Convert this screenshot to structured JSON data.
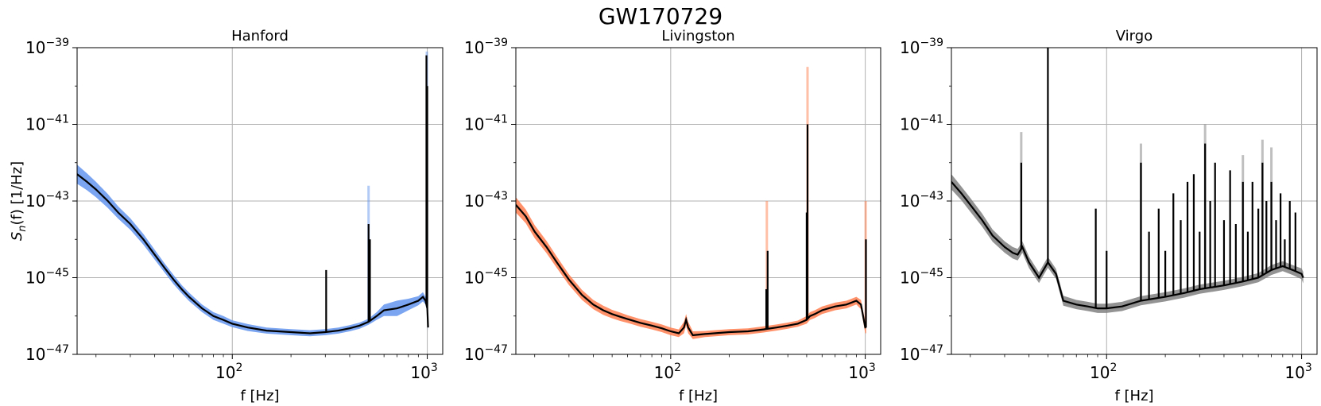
{
  "figure": {
    "title": "GW170729"
  },
  "chart_data": [
    {
      "type": "line",
      "title": "Hanford",
      "xlabel": "f [Hz]",
      "ylabel_main": "S",
      "ylabel_sub": "n",
      "ylabel_rest": "(f) [1/Hz]",
      "xscale": "log",
      "yscale": "log",
      "xlim": [
        16,
        1200
      ],
      "ylim_exp": [
        -47,
        -39
      ],
      "xticks": [
        {
          "value": 100,
          "base": "10",
          "exp": "2"
        },
        {
          "value": 1000,
          "base": "10",
          "exp": "3"
        }
      ],
      "yticks": [
        {
          "exp": -47,
          "base": "10",
          "label": "−47"
        },
        {
          "exp": -45,
          "base": "10",
          "label": "−45"
        },
        {
          "exp": -43,
          "base": "10",
          "label": "−43"
        },
        {
          "exp": -41,
          "base": "10",
          "label": "−41"
        },
        {
          "exp": -39,
          "base": "10",
          "label": "−39"
        }
      ],
      "grid": true,
      "band_color": "#6495ED",
      "median_color": "#000000",
      "series": [
        {
          "role": "median",
          "x": [
            16,
            18,
            20,
            23,
            26,
            30,
            35,
            40,
            45,
            50,
            55,
            60,
            70,
            80,
            90,
            100,
            120,
            150,
            200,
            250,
            300,
            350,
            400,
            450,
            500,
            550,
            600,
            700,
            800,
            900,
            950,
            980,
            1000,
            1010
          ],
          "log10_y": [
            -42.3,
            -42.5,
            -42.7,
            -43.0,
            -43.3,
            -43.6,
            -44.0,
            -44.4,
            -44.75,
            -45.05,
            -45.3,
            -45.5,
            -45.8,
            -46.0,
            -46.1,
            -46.2,
            -46.3,
            -46.38,
            -46.42,
            -46.45,
            -46.42,
            -46.38,
            -46.32,
            -46.25,
            -46.15,
            -46.0,
            -45.85,
            -45.8,
            -45.7,
            -45.6,
            -45.5,
            -45.6,
            -45.8,
            -46.3
          ],
          "lines": [
            {
              "f": 303,
              "top": -44.8
            },
            {
              "f": 500,
              "top": -43.6
            },
            {
              "f": 508,
              "top": -44.0
            },
            {
              "f": 990,
              "top": -39.2
            },
            {
              "f": 1000,
              "top": -40.0
            }
          ]
        },
        {
          "role": "band",
          "width_dex": [
            0.25,
            0.22,
            0.2,
            0.18,
            0.16,
            0.15,
            0.14,
            0.13,
            0.12,
            0.12,
            0.11,
            0.11,
            0.1,
            0.1,
            0.1,
            0.09,
            0.09,
            0.08,
            0.08,
            0.08,
            0.08,
            0.08,
            0.08,
            0.08,
            0.08,
            0.1,
            0.15,
            0.2,
            0.15,
            0.12,
            0.12,
            0.1,
            0.1,
            0.1
          ],
          "lines": [
            {
              "f": 500,
              "top": -42.6
            },
            {
              "f": 995,
              "top": -39.1
            }
          ]
        }
      ]
    },
    {
      "type": "line",
      "title": "Livingston",
      "xlabel": "f [Hz]",
      "xscale": "log",
      "yscale": "log",
      "xlim": [
        16,
        1200
      ],
      "ylim_exp": [
        -47,
        -39
      ],
      "xticks": [
        {
          "value": 100,
          "base": "10",
          "exp": "2"
        },
        {
          "value": 1000,
          "base": "10",
          "exp": "3"
        }
      ],
      "yticks": [
        {
          "exp": -47,
          "base": "10",
          "label": "−47"
        },
        {
          "exp": -45,
          "base": "10",
          "label": "−45"
        },
        {
          "exp": -43,
          "base": "10",
          "label": "−43"
        },
        {
          "exp": -41,
          "base": "10",
          "label": "−41"
        },
        {
          "exp": -39,
          "base": "10",
          "label": "−39"
        }
      ],
      "grid": true,
      "band_color": "#FF7F50",
      "median_color": "#000000",
      "series": [
        {
          "role": "median",
          "x": [
            16,
            18,
            20,
            23,
            26,
            30,
            35,
            40,
            45,
            50,
            55,
            60,
            70,
            80,
            90,
            100,
            110,
            117,
            120,
            123,
            130,
            150,
            200,
            250,
            300,
            350,
            400,
            450,
            500,
            520,
            550,
            600,
            700,
            800,
            900,
            950,
            1000,
            1010
          ],
          "log10_y": [
            -43.1,
            -43.4,
            -43.8,
            -44.2,
            -44.6,
            -45.05,
            -45.45,
            -45.7,
            -45.85,
            -45.95,
            -46.02,
            -46.08,
            -46.18,
            -46.25,
            -46.32,
            -46.4,
            -46.45,
            -46.3,
            -46.1,
            -46.3,
            -46.5,
            -46.47,
            -46.42,
            -46.4,
            -46.35,
            -46.3,
            -46.25,
            -46.2,
            -46.1,
            -46.0,
            -45.95,
            -45.85,
            -45.75,
            -45.7,
            -45.6,
            -45.7,
            -46.3,
            -46.3
          ],
          "lines": [
            {
              "f": 310,
              "top": -45.3
            },
            {
              "f": 315,
              "top": -44.3
            },
            {
              "f": 505,
              "top": -41.0
            },
            {
              "f": 500,
              "top": -43.3
            },
            {
              "f": 1008,
              "top": -44.0
            }
          ]
        },
        {
          "role": "band",
          "width_dex": [
            0.2,
            0.18,
            0.17,
            0.16,
            0.15,
            0.14,
            0.13,
            0.12,
            0.12,
            0.11,
            0.11,
            0.1,
            0.1,
            0.1,
            0.1,
            0.1,
            0.1,
            0.15,
            0.15,
            0.15,
            0.1,
            0.08,
            0.08,
            0.08,
            0.08,
            0.08,
            0.08,
            0.08,
            0.1,
            0.1,
            0.1,
            0.1,
            0.1,
            0.1,
            0.1,
            0.12,
            0.15,
            0.15
          ],
          "lines": [
            {
              "f": 312,
              "top": -43.0
            },
            {
              "f": 505,
              "top": -39.5
            },
            {
              "f": 1005,
              "top": -43.0
            }
          ]
        }
      ]
    },
    {
      "type": "line",
      "title": "Virgo",
      "xlabel": "f [Hz]",
      "xscale": "log",
      "yscale": "log",
      "xlim": [
        16,
        1200
      ],
      "ylim_exp": [
        -47,
        -39
      ],
      "xticks": [
        {
          "value": 100,
          "base": "10",
          "exp": "2"
        },
        {
          "value": 1000,
          "base": "10",
          "exp": "3"
        }
      ],
      "yticks": [
        {
          "exp": -47,
          "base": "10",
          "label": "−47"
        },
        {
          "exp": -45,
          "base": "10",
          "label": "−45"
        },
        {
          "exp": -43,
          "base": "10",
          "label": "−43"
        },
        {
          "exp": -41,
          "base": "10",
          "label": "−41"
        },
        {
          "exp": -39,
          "base": "10",
          "label": "−39"
        }
      ],
      "grid": true,
      "band_color": "#808080",
      "median_color": "#000000",
      "series": [
        {
          "role": "median",
          "x": [
            16,
            18,
            20,
            23,
            26,
            30,
            33,
            35,
            37,
            40,
            45,
            50,
            55,
            60,
            70,
            80,
            90,
            100,
            120,
            150,
            200,
            250,
            300,
            400,
            500,
            600,
            700,
            800,
            900,
            1000,
            1020
          ],
          "log10_y": [
            -42.5,
            -42.8,
            -43.1,
            -43.5,
            -43.9,
            -44.2,
            -44.35,
            -44.4,
            -44.2,
            -44.6,
            -45.0,
            -44.6,
            -44.9,
            -45.6,
            -45.7,
            -45.75,
            -45.8,
            -45.8,
            -45.75,
            -45.6,
            -45.5,
            -45.4,
            -45.3,
            -45.2,
            -45.1,
            -45.0,
            -44.8,
            -44.7,
            -44.8,
            -44.9,
            -45.0
          ],
          "lines": [
            {
              "f": 36.5,
              "top": -42.0
            },
            {
              "f": 50,
              "top": -39.0
            },
            {
              "f": 88,
              "top": -43.2
            },
            {
              "f": 100,
              "top": -44.3
            },
            {
              "f": 150,
              "top": -42.0
            },
            {
              "f": 165,
              "top": -43.8
            },
            {
              "f": 185,
              "top": -43.2
            },
            {
              "f": 200,
              "top": -44.3
            },
            {
              "f": 220,
              "top": -42.8
            },
            {
              "f": 240,
              "top": -43.5
            },
            {
              "f": 260,
              "top": -42.5
            },
            {
              "f": 280,
              "top": -42.3
            },
            {
              "f": 300,
              "top": -43.8
            },
            {
              "f": 320,
              "top": -41.5
            },
            {
              "f": 340,
              "top": -43.0
            },
            {
              "f": 360,
              "top": -42.0
            },
            {
              "f": 400,
              "top": -43.5
            },
            {
              "f": 430,
              "top": -42.2
            },
            {
              "f": 460,
              "top": -43.6
            },
            {
              "f": 500,
              "top": -42.5
            },
            {
              "f": 530,
              "top": -43.8
            },
            {
              "f": 560,
              "top": -42.5
            },
            {
              "f": 600,
              "top": -43.2
            },
            {
              "f": 630,
              "top": -42.0
            },
            {
              "f": 660,
              "top": -43.0
            },
            {
              "f": 700,
              "top": -42.5
            },
            {
              "f": 740,
              "top": -43.5
            },
            {
              "f": 780,
              "top": -42.8
            },
            {
              "f": 820,
              "top": -44.0
            },
            {
              "f": 870,
              "top": -43.0
            },
            {
              "f": 930,
              "top": -43.3
            }
          ],
          "lines_band": [
            {
              "f": 36.5,
              "top": -41.2
            },
            {
              "f": 150,
              "top": -41.5
            },
            {
              "f": 320,
              "top": -41.0
            },
            {
              "f": 500,
              "top": -41.8
            },
            {
              "f": 630,
              "top": -41.4
            },
            {
              "f": 700,
              "top": -41.6
            }
          ]
        },
        {
          "role": "band",
          "width_dex": [
            0.2,
            0.18,
            0.18,
            0.17,
            0.16,
            0.15,
            0.15,
            0.15,
            0.15,
            0.15,
            0.14,
            0.14,
            0.13,
            0.13,
            0.12,
            0.12,
            0.12,
            0.12,
            0.12,
            0.12,
            0.12,
            0.12,
            0.12,
            0.12,
            0.12,
            0.12,
            0.13,
            0.13,
            0.13,
            0.14,
            0.15
          ]
        }
      ]
    }
  ]
}
